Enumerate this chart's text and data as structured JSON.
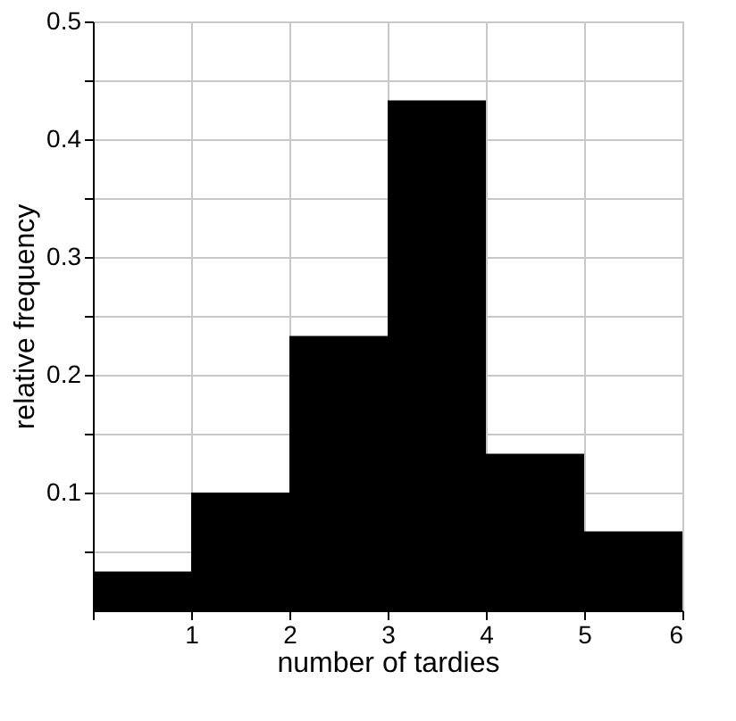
{
  "chart_data": {
    "type": "histogram",
    "xlabel": "number of tardies",
    "ylabel": "relative frequency",
    "bins": [
      0,
      1,
      2,
      3,
      4,
      5,
      6
    ],
    "values": [
      0.033,
      0.1,
      0.233,
      0.433,
      0.133,
      0.067
    ],
    "color": "#000000",
    "xlim": [
      0,
      6
    ],
    "xticks": [
      {
        "value": 0,
        "label": null
      },
      1,
      2,
      3,
      4,
      5,
      6
    ],
    "ylim": [
      0,
      0.5
    ],
    "yticks": [
      {
        "value": 0.05,
        "label": null
      },
      0.1,
      {
        "value": 0.15,
        "label": null
      },
      0.2,
      {
        "value": 0.25,
        "label": null
      },
      0.3,
      {
        "value": 0.35,
        "label": null
      },
      0.4,
      {
        "value": 0.45,
        "label": null
      },
      0.5
    ],
    "grid": true
  }
}
